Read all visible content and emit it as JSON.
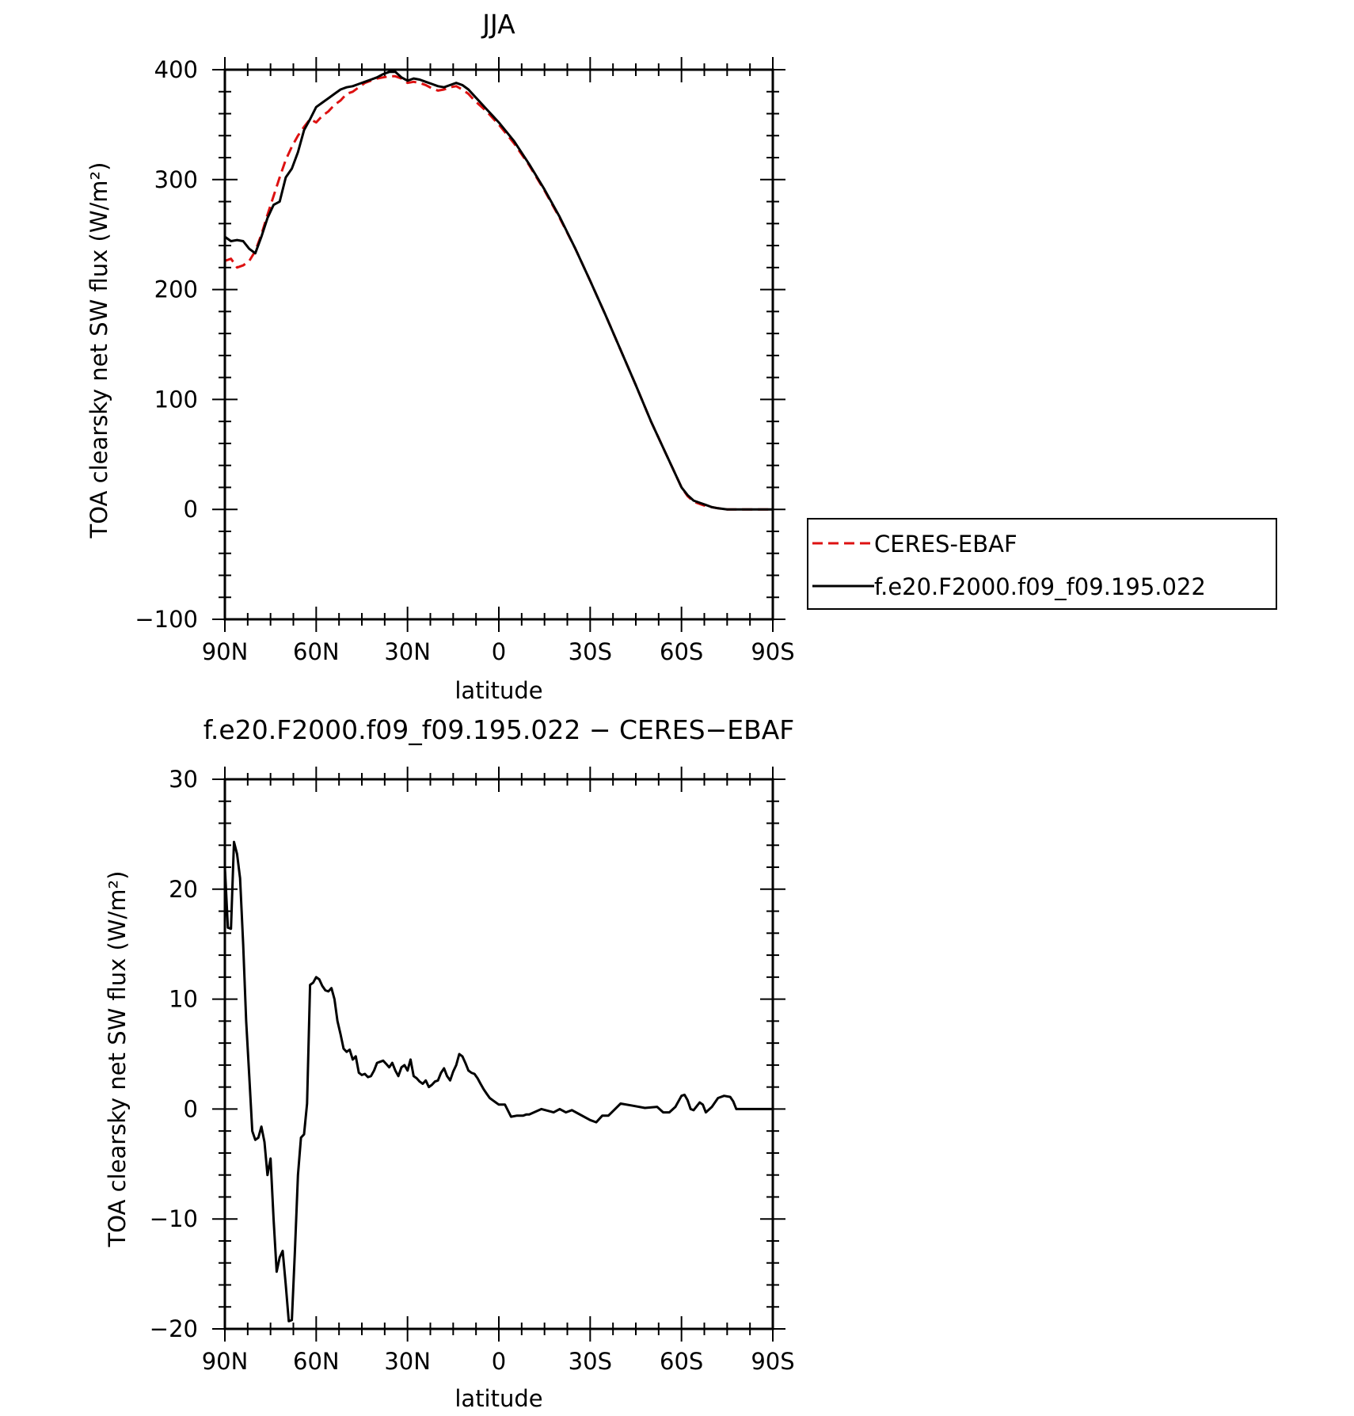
{
  "chart_data": [
    {
      "type": "line",
      "title": "JJA",
      "xlabel": "latitude",
      "ylabel": "TOA clearsky net SW flux (W/m²)",
      "xlim": [
        90,
        -90
      ],
      "ylim": [
        -100,
        400
      ],
      "xticks": [
        {
          "value": 90,
          "label": "90N"
        },
        {
          "value": 60,
          "label": "60N"
        },
        {
          "value": 30,
          "label": "30N"
        },
        {
          "value": 0,
          "label": "0"
        },
        {
          "value": -30,
          "label": "30S"
        },
        {
          "value": -60,
          "label": "60S"
        },
        {
          "value": -90,
          "label": "90S"
        }
      ],
      "yticks": [
        {
          "value": 400,
          "label": "400"
        },
        {
          "value": 300,
          "label": "300"
        },
        {
          "value": 200,
          "label": "200"
        },
        {
          "value": 100,
          "label": "100"
        },
        {
          "value": 0,
          "label": "0"
        },
        {
          "value": -100,
          "label": "−100"
        }
      ],
      "grid": false,
      "legend_placement": "right",
      "x": [
        90,
        88,
        86,
        84,
        82,
        80,
        78,
        76,
        74,
        72,
        70,
        68,
        66,
        64,
        62,
        60,
        58,
        56,
        54,
        52,
        50,
        48,
        46,
        44,
        42,
        40,
        38,
        36,
        34,
        32,
        30,
        28,
        26,
        24,
        22,
        20,
        18,
        16,
        14,
        12,
        10,
        8,
        6,
        4,
        2,
        0,
        -5,
        -10,
        -15,
        -20,
        -25,
        -30,
        -35,
        -40,
        -45,
        -50,
        -55,
        -60,
        -62,
        -64,
        -66,
        -68,
        -70,
        -72,
        -75,
        -78,
        -80,
        -85,
        -90
      ],
      "series": [
        {
          "name": "CERES-EBAF",
          "color": "#dd1111",
          "dash": "dashed",
          "values": [
            226,
            228,
            220,
            222,
            226,
            235,
            250,
            268,
            285,
            302,
            318,
            330,
            340,
            348,
            355,
            352,
            358,
            362,
            368,
            372,
            378,
            380,
            384,
            388,
            390,
            392,
            393,
            394,
            394,
            392,
            388,
            389,
            388,
            386,
            383,
            381,
            382,
            384,
            385,
            382,
            378,
            372,
            367,
            362,
            356,
            350,
            333,
            313,
            290,
            265,
            238,
            208,
            177,
            145,
            113,
            80,
            50,
            20,
            12,
            7,
            5,
            3,
            2,
            1,
            0,
            0,
            0,
            0,
            0
          ]
        },
        {
          "name": "f.e20.F2000.f09_f09.195.022",
          "color": "#000000",
          "dash": "solid",
          "values": [
            248,
            244,
            245,
            244,
            237,
            233,
            248,
            265,
            277,
            280,
            302,
            310,
            325,
            345,
            355,
            366,
            370,
            374,
            378,
            382,
            384,
            385,
            387,
            389,
            391,
            393,
            396,
            398,
            398,
            393,
            390,
            392,
            391,
            389,
            387,
            385,
            384,
            386,
            388,
            386,
            382,
            376,
            370,
            364,
            358,
            352,
            335,
            314,
            291,
            266,
            238,
            208,
            177,
            145,
            113,
            80,
            50,
            20,
            13,
            8,
            6,
            4,
            2,
            1,
            0,
            0,
            0,
            0,
            0
          ]
        }
      ]
    },
    {
      "type": "line",
      "title": "f.e20.F2000.f09_f09.195.022 − CERES−EBAF",
      "xlabel": "latitude",
      "ylabel": "TOA clearsky net SW flux (W/m²)",
      "xlim": [
        90,
        -90
      ],
      "ylim": [
        -20,
        30
      ],
      "xticks": [
        {
          "value": 90,
          "label": "90N"
        },
        {
          "value": 60,
          "label": "60N"
        },
        {
          "value": 30,
          "label": "30N"
        },
        {
          "value": 0,
          "label": "0"
        },
        {
          "value": -30,
          "label": "30S"
        },
        {
          "value": -60,
          "label": "60S"
        },
        {
          "value": -90,
          "label": "90S"
        }
      ],
      "yticks": [
        {
          "value": 30,
          "label": "30"
        },
        {
          "value": 20,
          "label": "20"
        },
        {
          "value": 10,
          "label": "10"
        },
        {
          "value": 0,
          "label": "0"
        },
        {
          "value": -10,
          "label": "−10"
        },
        {
          "value": -20,
          "label": "−20"
        }
      ],
      "grid": false,
      "x": [
        90,
        89,
        88,
        87,
        86,
        85,
        84,
        83,
        82,
        81,
        80,
        79,
        78,
        77,
        76,
        75,
        74,
        73,
        72,
        71,
        70,
        69,
        68,
        67,
        66,
        65,
        64,
        63,
        62,
        61,
        60,
        59,
        58,
        57,
        56,
        55,
        54,
        53,
        52,
        51,
        50,
        49,
        48,
        47,
        46,
        45,
        44,
        43,
        42,
        41,
        40,
        39,
        38,
        37,
        36,
        35,
        34,
        33,
        32,
        31,
        30,
        29,
        28,
        27,
        26,
        25,
        24,
        23,
        22,
        21,
        20,
        19,
        18,
        17,
        16,
        15,
        14,
        13,
        12,
        11,
        10,
        9,
        8,
        7,
        6,
        5,
        4,
        3,
        2,
        1,
        0,
        -2,
        -4,
        -6,
        -8,
        -9,
        -10,
        -14,
        -18,
        -20,
        -22,
        -24,
        -26,
        -30,
        -32,
        -34,
        -36,
        -40,
        -44,
        -48,
        -52,
        -54,
        -56,
        -58,
        -60,
        -61,
        -62,
        -63,
        -64,
        -66,
        -67,
        -68,
        -70,
        -72,
        -74,
        -76,
        -77,
        -78,
        -80,
        -84,
        -88,
        -90
      ],
      "series": [
        {
          "name": "",
          "color": "#000000",
          "dash": "solid",
          "values": [
            22,
            16.5,
            16.4,
            24.3,
            23.2,
            21,
            15,
            8,
            3,
            -2,
            -2.8,
            -2.6,
            -1.6,
            -3,
            -6,
            -4.5,
            -10,
            -14.8,
            -13.5,
            -12.9,
            -16,
            -19.3,
            -19.2,
            -13,
            -6,
            -2.6,
            -2.3,
            0.5,
            11.3,
            11.5,
            12,
            11.8,
            11.2,
            10.8,
            10.7,
            11,
            10,
            8,
            6.8,
            5.5,
            5.2,
            5.4,
            4.5,
            4.8,
            3.3,
            3.1,
            3.2,
            2.9,
            3,
            3.5,
            4.2,
            4.3,
            4.4,
            4.1,
            3.8,
            4.2,
            3.5,
            3,
            3.8,
            4,
            3.5,
            4.5,
            3,
            2.8,
            2.5,
            2.3,
            2.6,
            2,
            2.2,
            2.5,
            2.6,
            3.3,
            3.7,
            3,
            2.6,
            3.4,
            4,
            5,
            4.8,
            4.2,
            3.5,
            3.3,
            3.2,
            2.8,
            2.3,
            1.8,
            1.4,
            1,
            0.8,
            0.6,
            0.4,
            0.4,
            -0.7,
            -0.6,
            -0.6,
            -0.5,
            -0.5,
            0,
            -0.3,
            0,
            -0.3,
            -0.1,
            -0.4,
            -1,
            -1.2,
            -0.6,
            -0.6,
            0.5,
            0.3,
            0.1,
            0.2,
            -0.3,
            -0.3,
            0.2,
            1.2,
            1.3,
            0.8,
            0,
            -0.1,
            0.6,
            0.4,
            -0.3,
            0.2,
            1,
            1.2,
            1.1,
            0.7,
            0,
            0,
            0,
            0,
            0
          ]
        }
      ]
    }
  ]
}
